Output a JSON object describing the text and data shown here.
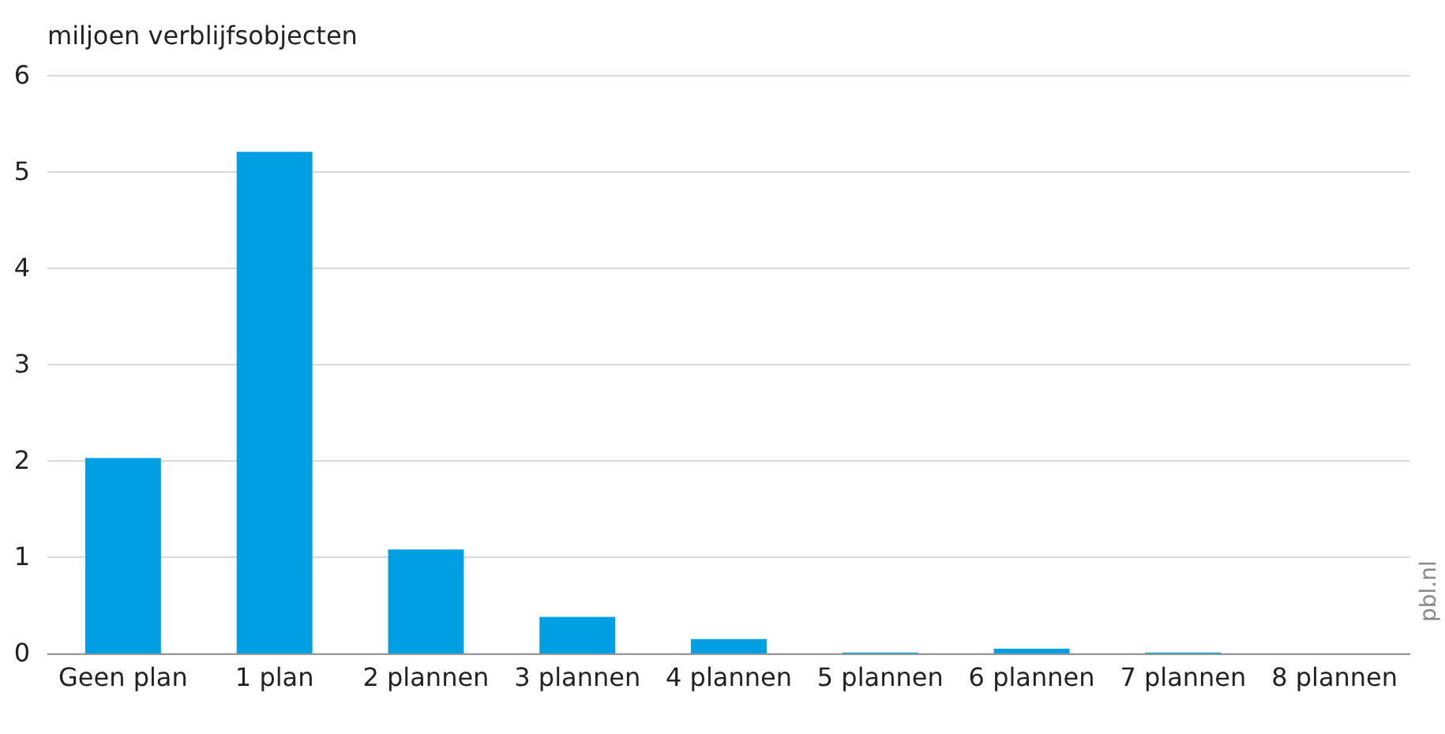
{
  "chart_data": {
    "type": "bar",
    "ylabel": "miljoen verblijfsobjecten",
    "categories": [
      "Geen plan",
      "1 plan",
      "2 plannen",
      "3 plannen",
      "4 plannen",
      "5 plannen",
      "6 plannen",
      "7 plannen",
      "8 plannen"
    ],
    "values": [
      2.03,
      5.21,
      1.08,
      0.38,
      0.15,
      0.01,
      0.05,
      0.01,
      0
    ],
    "color": "#009fe3",
    "ylim": [
      0,
      6
    ],
    "yticks": [
      0,
      1,
      2,
      3,
      4,
      5,
      6
    ],
    "grid": "y",
    "annotations": [
      "pbl.nl"
    ]
  }
}
